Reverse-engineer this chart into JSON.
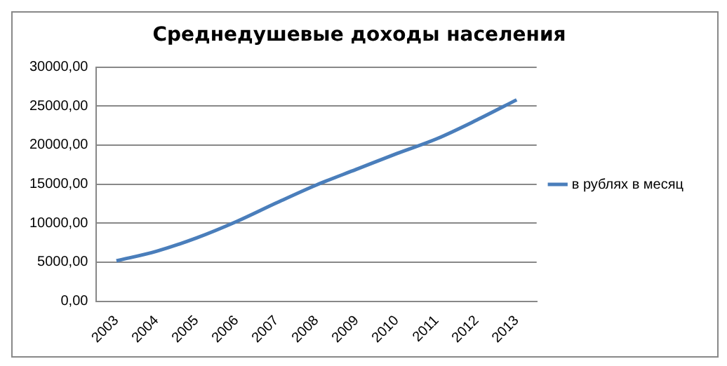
{
  "chart_data": {
    "type": "line",
    "title": "Среднедушевые доходы населения",
    "categories": [
      "2003",
      "2004",
      "2005",
      "2006",
      "2007",
      "2008",
      "2009",
      "2010",
      "2011",
      "2012",
      "2013"
    ],
    "series": [
      {
        "name": "в рублях в месяц",
        "color": "#4a7ebb",
        "values": [
          5170,
          6400,
          8100,
          10200,
          12600,
          14900,
          16900,
          18900,
          20800,
          23200,
          25800
        ]
      }
    ],
    "ylim": [
      0,
      30000
    ],
    "yticks": [
      {
        "value": 0,
        "label": "0,00"
      },
      {
        "value": 5000,
        "label": "5000,00"
      },
      {
        "value": 10000,
        "label": "10000,00"
      },
      {
        "value": 15000,
        "label": "15000,00"
      },
      {
        "value": 20000,
        "label": "20000,00"
      },
      {
        "value": 25000,
        "label": "25000,00"
      },
      {
        "value": 30000,
        "label": "30000,00"
      }
    ],
    "grid": "y",
    "legend": "right",
    "marker": "none",
    "line_style": "solid"
  }
}
